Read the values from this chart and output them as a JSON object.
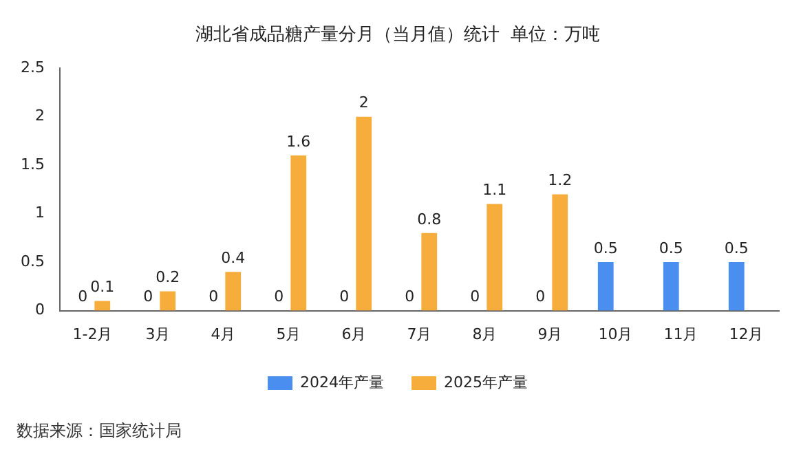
{
  "chart_data": {
    "type": "bar",
    "title": "湖北省成品糖产量分月（当月值）统计  单位：万吨",
    "categories": [
      "1-2月",
      "3月",
      "4月",
      "5月",
      "6月",
      "7月",
      "8月",
      "9月",
      "10月",
      "11月",
      "12月"
    ],
    "series": [
      {
        "name": "2024年产量",
        "color": "#4a8ef0",
        "values": [
          0,
          0,
          0,
          0,
          0,
          0,
          0,
          0,
          0.5,
          0.5,
          0.5
        ]
      },
      {
        "name": "2025年产量",
        "color": "#f7ad3c",
        "values": [
          0.1,
          0.2,
          0.4,
          1.6,
          2,
          0.8,
          1.1,
          1.2,
          null,
          null,
          null
        ]
      }
    ],
    "ylim": [
      0,
      2.5
    ],
    "yticks": [
      0,
      0.5,
      1,
      1.5,
      2,
      2.5
    ],
    "grid": false,
    "legend": "bottom",
    "data_labels": true,
    "annotations": [
      "数据来源：国家统计局"
    ]
  }
}
